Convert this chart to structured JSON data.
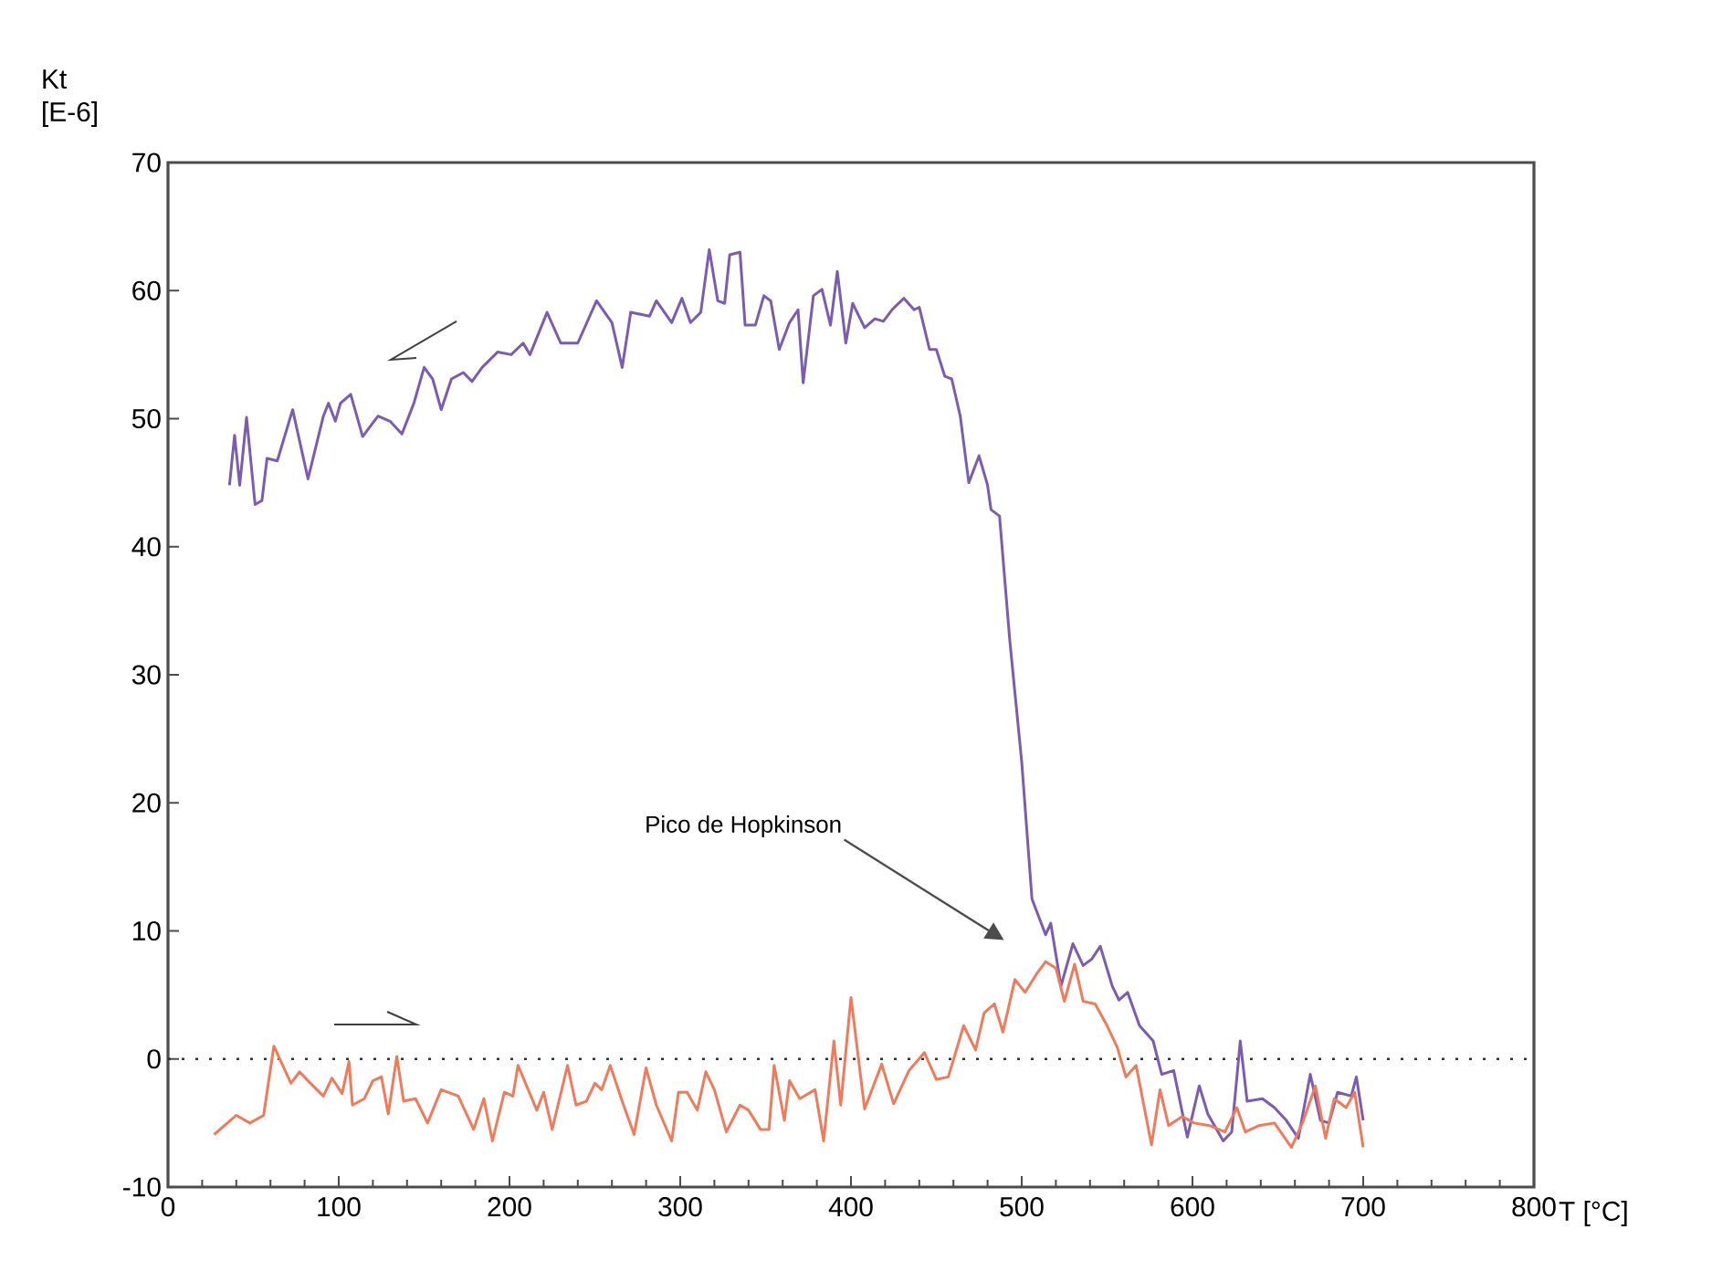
{
  "chart_data": {
    "type": "line",
    "xlabel": "T [°C]",
    "ylabel": "Kt [E-6]",
    "xlim": [
      0,
      800
    ],
    "xticks": [
      0,
      100,
      200,
      300,
      400,
      500,
      600,
      700,
      800
    ],
    "ylim": [
      -10,
      70
    ],
    "yticks": [
      -10,
      0,
      10,
      20,
      30,
      40,
      50,
      60,
      70
    ],
    "line_style": "solid",
    "series": [
      {
        "color": "#7b5cb0",
        "x": [
          36,
          39,
          42,
          46,
          51,
          55,
          58,
          64,
          73,
          82,
          91,
          94,
          98,
          101,
          107,
          114,
          123,
          130,
          137,
          144,
          150,
          155,
          160,
          166,
          173,
          178,
          184,
          193,
          201,
          208,
          212,
          222,
          230,
          240,
          251,
          260,
          266,
          271,
          282,
          286,
          295,
          301,
          306,
          312,
          317,
          322,
          326,
          329,
          335,
          338,
          344,
          349,
          353,
          358,
          364,
          369,
          372,
          378,
          383,
          388,
          392,
          397,
          401,
          408,
          414,
          419,
          424,
          431,
          437,
          440,
          446,
          450,
          455,
          459,
          464,
          469,
          475,
          480,
          482,
          487,
          493,
          500,
          506,
          514,
          517,
          523,
          530,
          536,
          541,
          546,
          553,
          557,
          562,
          569,
          577,
          582,
          589,
          597,
          604,
          609,
          618,
          623,
          628,
          632,
          641,
          648,
          655,
          662,
          669,
          675,
          680,
          685,
          693,
          696,
          700
        ],
        "values": [
          44.8,
          48.7,
          44.8,
          50.1,
          43.3,
          43.6,
          46.9,
          46.7,
          50.7,
          45.3,
          50.2,
          51.2,
          49.8,
          51.2,
          51.9,
          48.6,
          50.2,
          49.8,
          48.8,
          51.2,
          54,
          53.1,
          50.7,
          53.1,
          53.6,
          52.9,
          54,
          55.2,
          55,
          55.9,
          55,
          58.3,
          55.9,
          55.9,
          59.2,
          57.5,
          54,
          58.3,
          58,
          59.2,
          57.5,
          59.4,
          57.5,
          58.3,
          63.2,
          59.2,
          59,
          62.8,
          63,
          57.3,
          57.3,
          59.6,
          59.2,
          55.4,
          57.5,
          58.5,
          52.8,
          59.6,
          60.1,
          57.3,
          61.5,
          55.9,
          59,
          57.1,
          57.8,
          57.6,
          58.5,
          59.4,
          58.5,
          58.7,
          55.4,
          55.4,
          53.3,
          53.1,
          50.2,
          45,
          47.1,
          44.8,
          42.9,
          42.4,
          32.7,
          23.2,
          12.5,
          9.7,
          10.6,
          5.7,
          9,
          7.3,
          7.8,
          8.8,
          5.7,
          4.6,
          5.2,
          2.6,
          1.4,
          -1.2,
          -0.9,
          -6.1,
          -2.1,
          -4.3,
          -6.4,
          -5.7,
          1.4,
          -3.3,
          -3.1,
          -3.8,
          -4.8,
          -6.2,
          -1.2,
          -4.8,
          -5,
          -2.6,
          -2.9,
          -1.4,
          -4.8
        ]
      },
      {
        "color": "#f07a5a",
        "x": [
          27,
          40,
          48,
          56,
          62,
          72,
          77,
          82,
          91,
          96,
          102,
          106,
          108,
          115,
          120,
          125,
          129,
          134,
          138,
          145,
          152,
          160,
          170,
          179,
          185,
          190,
          197,
          202,
          205,
          216,
          220,
          225,
          234,
          239,
          245,
          250,
          254,
          259,
          266,
          273,
          280,
          286,
          295,
          299,
          304,
          310,
          315,
          320,
          327,
          335,
          340,
          347,
          352,
          355,
          361,
          364,
          370,
          379,
          384,
          390,
          394,
          400,
          408,
          418,
          425,
          434,
          443,
          450,
          457,
          466,
          473,
          478,
          484,
          489,
          496,
          502,
          509,
          514,
          520,
          525,
          531,
          536,
          543,
          550,
          556,
          561,
          567,
          576,
          581,
          586,
          594,
          601,
          610,
          619,
          626,
          631,
          639,
          648,
          658,
          665,
          672,
          678,
          683,
          690,
          695,
          700
        ],
        "values": [
          -5.9,
          -4.4,
          -5,
          -4.4,
          1,
          -1.9,
          -1,
          -1.7,
          -2.9,
          -1.5,
          -2.7,
          -0.2,
          -3.6,
          -3.1,
          -1.7,
          -1.4,
          -4.3,
          0.2,
          -3.3,
          -3.1,
          -5,
          -2.4,
          -2.9,
          -5.5,
          -3.1,
          -6.4,
          -2.6,
          -2.9,
          -0.5,
          -4,
          -2.6,
          -5.5,
          -0.5,
          -3.6,
          -3.3,
          -1.9,
          -2.4,
          -0.5,
          -3.3,
          -5.9,
          -0.7,
          -3.6,
          -6.4,
          -2.6,
          -2.6,
          -4,
          -1,
          -2.4,
          -5.7,
          -3.6,
          -4,
          -5.5,
          -5.5,
          -0.5,
          -4.8,
          -1.7,
          -3.1,
          -2.4,
          -6.4,
          1.4,
          -3.6,
          4.8,
          -3.9,
          -0.4,
          -3.5,
          -0.9,
          0.5,
          -1.6,
          -1.4,
          2.6,
          0.7,
          3.6,
          4.3,
          2.1,
          6.2,
          5.2,
          6.7,
          7.6,
          7.1,
          4.5,
          7.4,
          4.5,
          4.3,
          2.6,
          0.9,
          -1.4,
          -0.5,
          -6.7,
          -2.4,
          -5.2,
          -4.5,
          -5,
          -5.2,
          -5.7,
          -3.8,
          -5.7,
          -5.2,
          -5,
          -6.9,
          -4.8,
          -2.1,
          -6.2,
          -3.1,
          -3.8,
          -2.6,
          -6.9
        ]
      }
    ],
    "ref_lines": [
      {
        "axis": "y",
        "value": 0,
        "color": "#333333",
        "line_style": "dotted"
      }
    ],
    "annotations": [
      "Pico de Hopkinson"
    ]
  }
}
